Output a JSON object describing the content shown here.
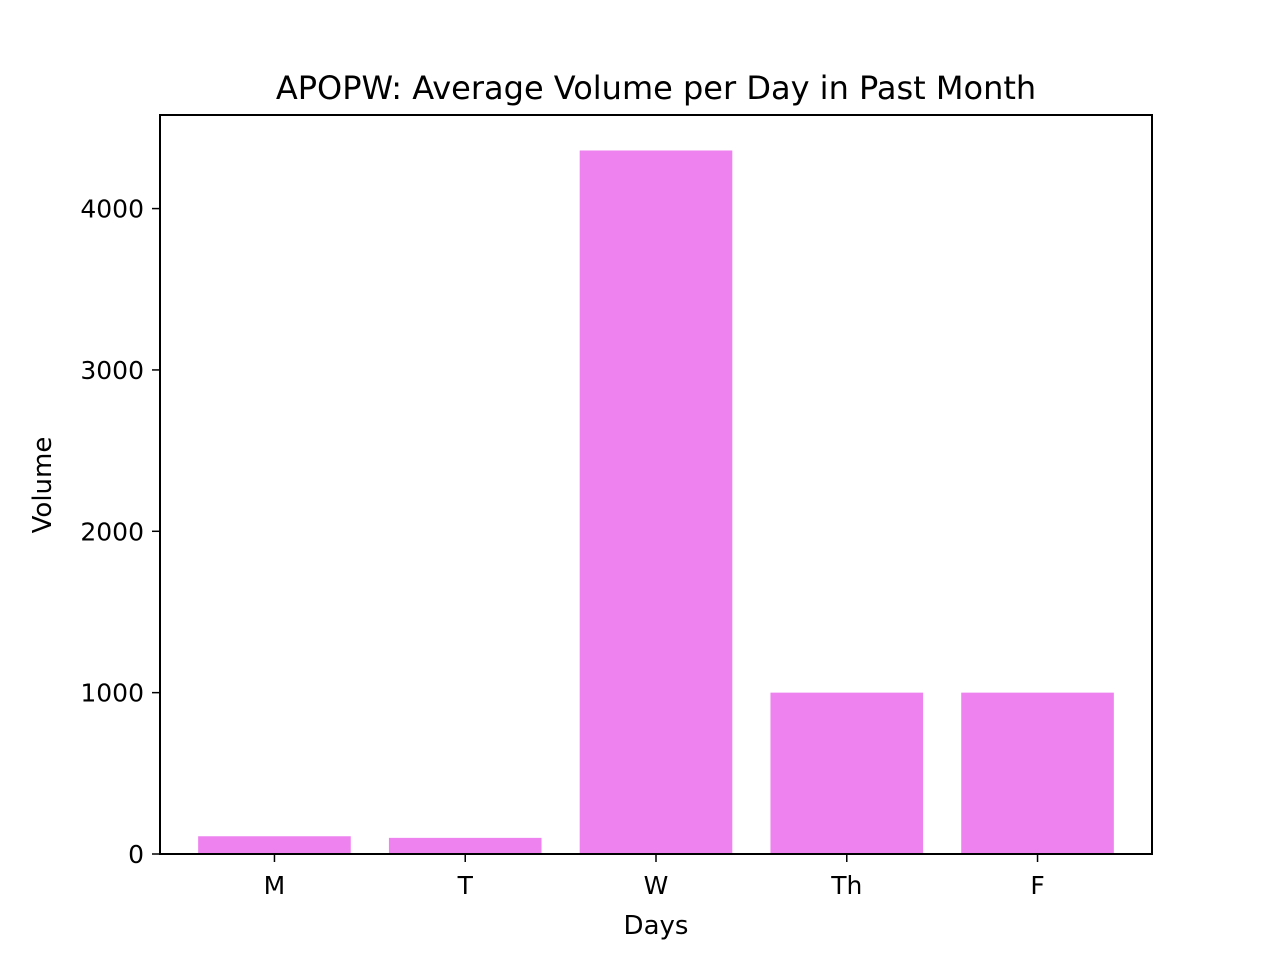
{
  "chart_data": {
    "type": "bar",
    "title": "APOPW: Average Volume per Day in Past Month",
    "xlabel": "Days",
    "ylabel": "Volume",
    "categories": [
      "M",
      "T",
      "W",
      "Th",
      "F"
    ],
    "values": [
      110,
      100,
      4360,
      1000,
      1000
    ],
    "ylim": [
      0,
      4580
    ],
    "yticks": [
      0,
      1000,
      2000,
      3000,
      4000
    ],
    "bar_color": "#ee82ee",
    "grid": false,
    "legend": "none"
  }
}
